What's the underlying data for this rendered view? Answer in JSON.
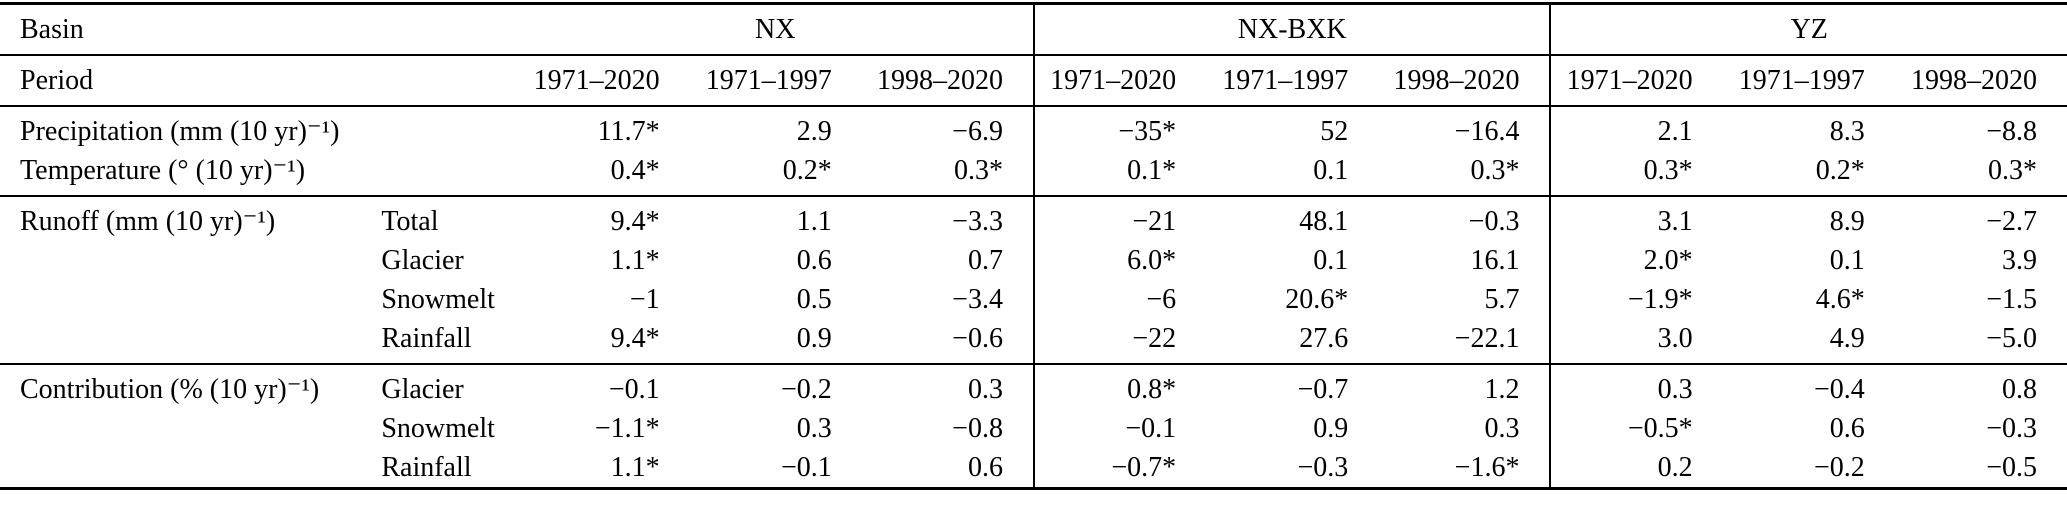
{
  "page": {
    "background_color": "#ffffff",
    "text_color": "#000000",
    "rule_color": "#000000"
  },
  "table": {
    "corner_label": "Basin",
    "period_label": "Period",
    "basin_groups": [
      {
        "label": "NX"
      },
      {
        "label": "NX-BXK"
      },
      {
        "label": "YZ"
      }
    ],
    "periods": [
      "1971–2020",
      "1971–1997",
      "1998–2020"
    ],
    "groups": [
      {
        "rows": [
          {
            "variable": "Precipitation (mm (10 yr)⁻¹)",
            "component": "",
            "values": [
              "11.7*",
              "2.9",
              "−6.9",
              "−35*",
              "52",
              "−16.4",
              "2.1",
              "8.3",
              "−8.8"
            ]
          },
          {
            "variable": "Temperature (° (10 yr)⁻¹)",
            "component": "",
            "values": [
              "0.4*",
              "0.2*",
              "0.3*",
              "0.1*",
              "0.1",
              "0.3*",
              "0.3*",
              "0.2*",
              "0.3*"
            ]
          }
        ]
      },
      {
        "rows": [
          {
            "variable": "Runoff (mm (10 yr)⁻¹)",
            "component": "Total",
            "values": [
              "9.4*",
              "1.1",
              "−3.3",
              "−21",
              "48.1",
              "−0.3",
              "3.1",
              "8.9",
              "−2.7"
            ]
          },
          {
            "variable": "",
            "component": "Glacier",
            "values": [
              "1.1*",
              "0.6",
              "0.7",
              "6.0*",
              "0.1",
              "16.1",
              "2.0*",
              "0.1",
              "3.9"
            ]
          },
          {
            "variable": "",
            "component": "Snowmelt",
            "values": [
              "−1",
              "0.5",
              "−3.4",
              "−6",
              "20.6*",
              "5.7",
              "−1.9*",
              "4.6*",
              "−1.5"
            ]
          },
          {
            "variable": "",
            "component": "Rainfall",
            "values": [
              "9.4*",
              "0.9",
              "−0.6",
              "−22",
              "27.6",
              "−22.1",
              "3.0",
              "4.9",
              "−5.0"
            ]
          }
        ]
      },
      {
        "rows": [
          {
            "variable": "Contribution (% (10 yr)⁻¹)",
            "component": "Glacier",
            "values": [
              "−0.1",
              "−0.2",
              "0.3",
              "0.8*",
              "−0.7",
              "1.2",
              "0.3",
              "−0.4",
              "0.8"
            ]
          },
          {
            "variable": "",
            "component": "Snowmelt",
            "values": [
              "−1.1*",
              "0.3",
              "−0.8",
              "−0.1",
              "0.9",
              "0.3",
              "−0.5*",
              "0.6",
              "−0.3"
            ]
          },
          {
            "variable": "",
            "component": "Rainfall",
            "values": [
              "1.1*",
              "−0.1",
              "0.6",
              "−0.7*",
              "−0.3",
              "−1.6*",
              "0.2",
              "−0.2",
              "−0.5"
            ]
          }
        ]
      }
    ]
  }
}
